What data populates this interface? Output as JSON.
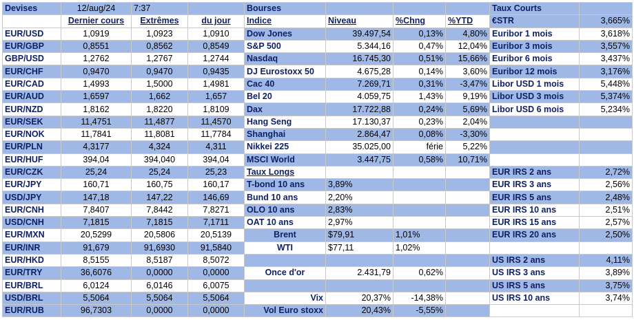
{
  "devises": {
    "title": "Devises",
    "date": "12/aug/24",
    "time": "7:37",
    "col_dernier": "Dernier cours",
    "col_extremes": "Extrêmes",
    "col_jour": "du jour",
    "rows": [
      {
        "pair": "EUR/USD",
        "dernier": "1,0919",
        "ext1": "1,0923",
        "ext2": "1,0910"
      },
      {
        "pair": "EUR/GBP",
        "dernier": "0,8551",
        "ext1": "0,8562",
        "ext2": "0,8549"
      },
      {
        "pair": "GBP/USD",
        "dernier": "1,2762",
        "ext1": "1,2767",
        "ext2": "1,2744"
      },
      {
        "pair": "EUR/CHF",
        "dernier": "0,9470",
        "ext1": "0,9470",
        "ext2": "0,9435"
      },
      {
        "pair": "EUR/CAD",
        "dernier": "1,4993",
        "ext1": "1,5000",
        "ext2": "1,4981"
      },
      {
        "pair": "EUR/AUD",
        "dernier": "1,6597",
        "ext1": "1,662",
        "ext2": "1,657"
      },
      {
        "pair": "EUR/NZD",
        "dernier": "1,8162",
        "ext1": "1,8220",
        "ext2": "1,8109"
      },
      {
        "pair": "EUR/SEK",
        "dernier": "11,4751",
        "ext1": "11,4877",
        "ext2": "11,4570"
      },
      {
        "pair": "EUR/NOK",
        "dernier": "11,7841",
        "ext1": "11,8081",
        "ext2": "11,7784"
      },
      {
        "pair": "EUR/PLN",
        "dernier": "4,3177",
        "ext1": "4,324",
        "ext2": "4,311"
      },
      {
        "pair": "EUR/HUF",
        "dernier": "394,04",
        "ext1": "394,040",
        "ext2": "394,04"
      },
      {
        "pair": "EUR/CZK",
        "dernier": "25,24",
        "ext1": "25,24",
        "ext2": "25,23"
      },
      {
        "pair": "EUR/JPY",
        "dernier": "160,71",
        "ext1": "160,75",
        "ext2": "160,17"
      },
      {
        "pair": "USD/JPY",
        "dernier": "147,18",
        "ext1": "147,22",
        "ext2": "146,69"
      },
      {
        "pair": "EUR/CNH",
        "dernier": "7,8407",
        "ext1": "7,8442",
        "ext2": "7,8271"
      },
      {
        "pair": "USD/CNH",
        "dernier": "7,1815",
        "ext1": "7,1815",
        "ext2": "7,1711"
      },
      {
        "pair": "EUR/MXN",
        "dernier": "20,5299",
        "ext1": "20,5806",
        "ext2": "20,5139"
      },
      {
        "pair": "EUR/INR",
        "dernier": "91,679",
        "ext1": "91,6930",
        "ext2": "91,5840"
      },
      {
        "pair": "EUR/HKD",
        "dernier": "8,5155",
        "ext1": "8,5187",
        "ext2": "8,5072"
      },
      {
        "pair": "EUR/TRY",
        "dernier": "36,6076",
        "ext1": "0,0000",
        "ext2": "0,0000"
      },
      {
        "pair": "EUR/BRL",
        "dernier": "6,0124",
        "ext1": "6,0146",
        "ext2": "6,0075"
      },
      {
        "pair": "USD/BRL",
        "dernier": "5,5064",
        "ext1": "5,5064",
        "ext2": "5,5064"
      },
      {
        "pair": "EUR/RUB",
        "dernier": "96,7303",
        "ext1": "0,0000",
        "ext2": "0,0000"
      }
    ]
  },
  "bourses": {
    "title": "Bourses",
    "col_indice": "Indice",
    "col_niveau": "Niveau",
    "col_chng": "%Chng",
    "col_ytd": "%YTD",
    "rows": [
      {
        "name": "Dow Jones",
        "niveau": "39.497,54",
        "chng": "0,13%",
        "ytd": "4,80%"
      },
      {
        "name": "S&P 500",
        "niveau": "5.344,16",
        "chng": "0,47%",
        "ytd": "12,04%"
      },
      {
        "name": "Nasdaq",
        "niveau": "16.745,30",
        "chng": "0,51%",
        "ytd": "15,66%"
      },
      {
        "name": "DJ Eurostoxx 50",
        "niveau": "4.675,28",
        "chng": "0,14%",
        "ytd": "3,60%"
      },
      {
        "name": "Cac 40",
        "niveau": "7.269,71",
        "chng": "0,31%",
        "ytd": "-3,47%"
      },
      {
        "name": "Bel 20",
        "niveau": "4.059,75",
        "chng": "1,43%",
        "ytd": "9,19%"
      },
      {
        "name": "Dax",
        "niveau": "17.722,88",
        "chng": "0,24%",
        "ytd": "5,69%"
      },
      {
        "name": "Hang Seng",
        "niveau": "17.130,37",
        "chng": "0,23%",
        "ytd": "2,04%"
      },
      {
        "name": "Shanghai",
        "niveau": "2.864,47",
        "chng": "0,08%",
        "ytd": "-3,30%"
      },
      {
        "name": "Nikkei 225",
        "niveau": "35.025,00",
        "chng": "férie",
        "ytd": "5,22%"
      },
      {
        "name": "MSCI World",
        "niveau": "3.447,75",
        "chng": "0,58%",
        "ytd": "10,71%"
      }
    ]
  },
  "taux_longs": {
    "title": "Taux Longs",
    "rows": [
      {
        "name": "T-bond 10 ans",
        "value": "3,89%"
      },
      {
        "name": "Bund 10 ans",
        "value": "2,20%"
      },
      {
        "name": "OLO 10 ans",
        "value": "2,83%"
      },
      {
        "name": "OAT 10 ans",
        "value": "2,97%"
      }
    ]
  },
  "commodities": [
    {
      "name": "Brent",
      "value": "$79,91",
      "chng": "1,01%"
    },
    {
      "name": "WTI",
      "value": "$77,11",
      "chng": "1,02%"
    },
    {
      "name": "Once d'or",
      "value": "2.431,79",
      "chng": "0,62%"
    },
    {
      "name": "Vix",
      "value": "20,37%",
      "chng": "-14,38%"
    },
    {
      "name": "Vol Euro stoxx",
      "value": "20,43%",
      "chng": "-5,55%"
    }
  ],
  "taux_courts": {
    "title": "Taux Courts",
    "rows": [
      {
        "name": "€STR",
        "value": "3,665%"
      },
      {
        "name": "Euribor 1 mois",
        "value": "3,618%"
      },
      {
        "name": "Euribor 3 mois",
        "value": "3,557%"
      },
      {
        "name": "Euribor 6 mois",
        "value": "3,437%"
      },
      {
        "name": "Euribor 12 mois",
        "value": "3,176%"
      },
      {
        "name": "Libor USD 1 mois",
        "value": "5,448%"
      },
      {
        "name": "Libor USD 3 mois",
        "value": "5,374%"
      },
      {
        "name": "Libor USD 6 mois",
        "value": "5,234%"
      }
    ]
  },
  "irs_eur": [
    {
      "name": "EUR IRS 2 ans",
      "value": "2,72%"
    },
    {
      "name": "EUR IRS 3 ans",
      "value": "2,56%"
    },
    {
      "name": "EUR IRS 5 ans",
      "value": "2,48%"
    },
    {
      "name": "EUR IRS 10 ans",
      "value": "2,51%"
    },
    {
      "name": "EUR IRS 15 ans",
      "value": "2,57%"
    },
    {
      "name": "EUR IRS 20 ans",
      "value": "2,50%"
    }
  ],
  "irs_us": [
    {
      "name": "US IRS 2 ans",
      "value": "4,11%"
    },
    {
      "name": "US IRS 3 ans",
      "value": "3,89%"
    },
    {
      "name": "US IRS 5 ans",
      "value": "3,75%"
    },
    {
      "name": "US IRS 10 ans",
      "value": "3,74%"
    }
  ]
}
